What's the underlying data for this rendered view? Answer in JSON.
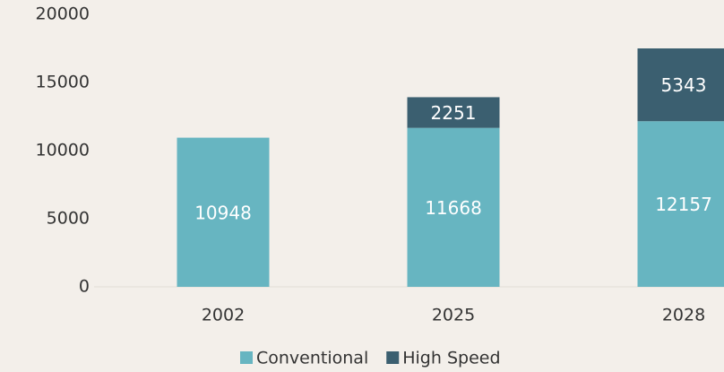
{
  "chart_data": {
    "type": "stacked-bar",
    "categories": [
      "2002",
      "2025",
      "2028"
    ],
    "series": [
      {
        "name": "Conventional",
        "color": "#67b5c1",
        "values": [
          10948,
          11668,
          12157
        ]
      },
      {
        "name": "High Speed",
        "color": "#3b5f70",
        "values": [
          null,
          2251,
          5343
        ]
      }
    ],
    "ylim": [
      0,
      20000
    ],
    "yticks": [
      0,
      5000,
      10000,
      15000,
      20000
    ],
    "grid": false,
    "legend": "bottom"
  }
}
